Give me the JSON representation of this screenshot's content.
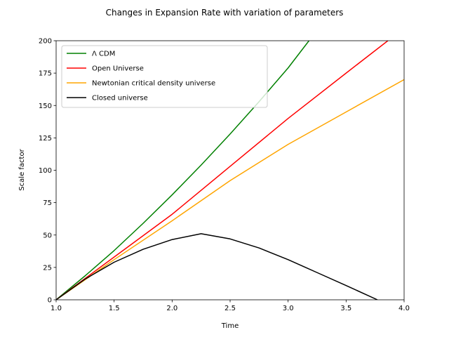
{
  "chart_data": {
    "type": "line",
    "title": "Changes in Expansion Rate with variation of parameters",
    "xlabel": "Time",
    "ylabel": "Scale factor",
    "xlim": [
      1.0,
      4.0
    ],
    "ylim": [
      0,
      200
    ],
    "xticks": [
      1.0,
      1.5,
      2.0,
      2.5,
      3.0,
      3.5,
      4.0
    ],
    "xtick_labels": [
      "1.0",
      "1.5",
      "2.0",
      "2.5",
      "3.0",
      "3.5",
      "4.0"
    ],
    "yticks": [
      0,
      25,
      50,
      75,
      100,
      125,
      150,
      175,
      200
    ],
    "ytick_labels": [
      "0",
      "25",
      "50",
      "75",
      "100",
      "125",
      "150",
      "175",
      "200"
    ],
    "grid": false,
    "legend_position": "top-left",
    "series": [
      {
        "name": "Λ CDM",
        "color": "#008000",
        "x": [
          1.0,
          1.25,
          1.5,
          1.75,
          2.0,
          2.25,
          2.5,
          2.75,
          3.0,
          3.18
        ],
        "y": [
          0,
          18.5,
          38,
          59,
          81,
          104,
          128,
          153,
          179,
          200
        ]
      },
      {
        "name": "Open Universe",
        "color": "#ff0000",
        "x": [
          1.0,
          1.5,
          2.0,
          2.5,
          3.0,
          3.5,
          3.86
        ],
        "y": [
          0,
          33,
          66,
          103,
          140,
          175,
          200
        ]
      },
      {
        "name": "Newtonian critical density universe",
        "color": "#ffa500",
        "x": [
          1.0,
          1.5,
          2.0,
          2.5,
          3.0,
          3.5,
          4.0
        ],
        "y": [
          0,
          31,
          61,
          92,
          120,
          145,
          170
        ]
      },
      {
        "name": "Closed universe",
        "color": "#000000",
        "x": [
          1.0,
          1.25,
          1.5,
          1.75,
          2.0,
          2.25,
          2.5,
          2.75,
          3.0,
          3.25,
          3.5,
          3.77
        ],
        "y": [
          0,
          16,
          29,
          39,
          46.5,
          51,
          47,
          40,
          31,
          21,
          11,
          0
        ]
      }
    ]
  }
}
